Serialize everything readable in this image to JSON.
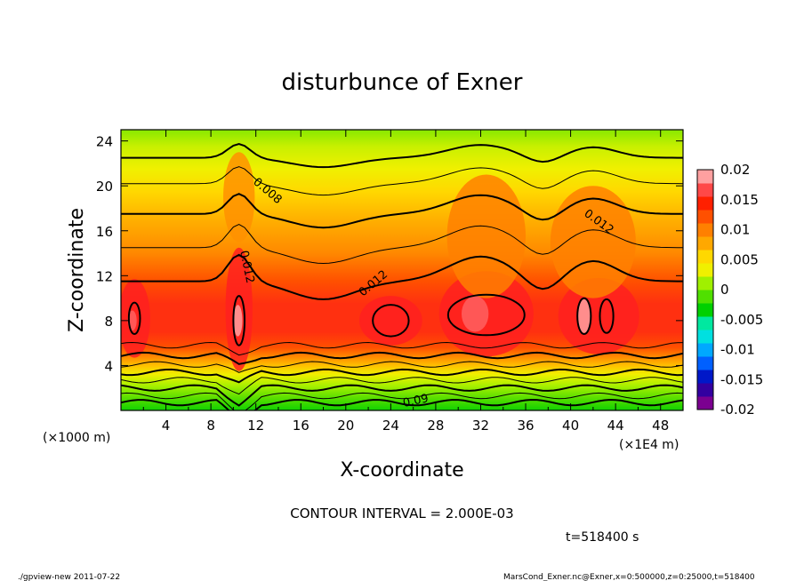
{
  "chart_data": {
    "type": "heatmap",
    "title": "disturbunce of Exner",
    "xlabel": "X-coordinate",
    "ylabel": "Z-coordinate",
    "x_ticks": [
      "4",
      "8",
      "12",
      "16",
      "20",
      "24",
      "28",
      "32",
      "36",
      "40",
      "44",
      "48"
    ],
    "y_ticks": [
      "4",
      "8",
      "12",
      "16",
      "20",
      "24"
    ],
    "xlim": [
      0,
      50
    ],
    "ylim": [
      0,
      25
    ],
    "x_unit": "(×1E4 m)",
    "y_unit": "(×1000 m)",
    "colorbar": {
      "labels": [
        "0.02",
        "0.015",
        "0.01",
        "0.005",
        "0",
        "-0.005",
        "-0.01",
        "-0.015",
        "-0.02"
      ],
      "min": -0.02,
      "max": 0.02,
      "colors": [
        "#7b0090",
        "#3300a0",
        "#0018c8",
        "#0060ff",
        "#00a8ff",
        "#00e0e0",
        "#00e8a0",
        "#00d000",
        "#50e000",
        "#a0f000",
        "#f0f000",
        "#ffd800",
        "#ffa800",
        "#ff8000",
        "#ff5000",
        "#ff2000",
        "#ff4848",
        "#ffa0a0"
      ]
    },
    "contour_labels": [
      "0.008",
      "0.012",
      "0.012",
      "0.012",
      "0.09"
    ],
    "contour_interval": "CONTOUR INTERVAL = 2.000E-03",
    "time": "t=518400 s"
  },
  "footer": {
    "left": "./gpview-new  2011-07-22",
    "right": "MarsCond_Exner.nc@Exner,x=0:500000,z=0:25000,t=518400"
  }
}
